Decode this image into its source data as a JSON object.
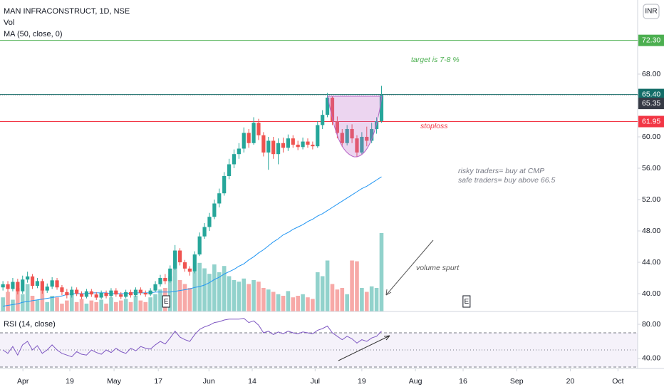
{
  "chart_data": {
    "type": "candlestick",
    "title": "MAN INFRACONSTRUCT, 1D, NSE",
    "currency": "INR",
    "up_color": "#26a69a",
    "down_color": "#ef5350",
    "open": [
      40.8,
      41.2,
      40.6,
      41.5,
      40.3,
      41.8,
      42.2,
      41.0,
      41.6,
      40.4,
      40.9,
      41.7,
      40.8,
      40.2,
      39.8,
      40.5,
      40.0,
      39.6,
      40.3,
      39.9,
      39.5,
      40.1,
      39.7,
      40.4,
      39.9,
      39.6,
      40.2,
      39.8,
      40.5,
      40.1,
      39.9,
      40.4,
      41.2,
      42.0,
      41.6,
      43.2,
      45.5,
      44.0,
      43.2,
      42.8,
      45.0,
      47.3,
      48.5,
      49.8,
      51.5,
      52.8,
      55.0,
      56.5,
      57.8,
      58.5,
      60.5,
      59.2,
      61.8,
      60.2,
      58.0,
      59.5,
      57.8,
      59.2,
      58.6,
      59.8,
      59.0,
      58.7,
      59.4,
      59.0,
      58.8,
      61.5,
      62.8,
      65.0,
      62.0,
      60.5,
      59.2,
      61.0,
      59.8,
      58.0,
      60.0,
      59.5,
      61.0,
      62.0
    ],
    "high": [
      41.6,
      41.6,
      42.0,
      41.9,
      42.3,
      42.8,
      42.5,
      42.0,
      41.9,
      41.3,
      42.1,
      42.0,
      41.1,
      40.6,
      40.9,
      40.8,
      40.3,
      40.6,
      40.6,
      40.2,
      40.4,
      40.4,
      40.7,
      40.7,
      40.2,
      40.5,
      40.5,
      40.8,
      40.8,
      40.4,
      40.7,
      41.6,
      42.4,
      42.5,
      43.6,
      46.2,
      45.8,
      44.3,
      43.5,
      45.4,
      47.8,
      49.0,
      50.3,
      52.0,
      53.4,
      55.5,
      57.2,
      58.4,
      59.2,
      61.2,
      61.0,
      62.5,
      62.3,
      60.6,
      60.0,
      60.0,
      59.8,
      59.9,
      60.3,
      60.2,
      59.5,
      59.9,
      59.8,
      59.4,
      62.0,
      63.4,
      65.6,
      65.2,
      62.6,
      61.0,
      61.5,
      61.6,
      60.2,
      60.6,
      61.3,
      61.8,
      62.5,
      66.5
    ],
    "low": [
      40.4,
      40.2,
      40.3,
      39.9,
      40.0,
      41.4,
      40.6,
      40.7,
      40.0,
      40.1,
      40.6,
      40.5,
      39.8,
      39.4,
      39.5,
      39.7,
      39.3,
      39.4,
      39.6,
      39.2,
      39.3,
      39.4,
      39.5,
      39.6,
      39.3,
      39.4,
      39.5,
      39.6,
      39.8,
      39.6,
      39.7,
      40.2,
      40.9,
      41.2,
      41.4,
      43.0,
      43.6,
      42.8,
      42.3,
      42.6,
      44.8,
      47.0,
      48.0,
      49.5,
      51.0,
      52.5,
      54.6,
      56.0,
      57.2,
      58.0,
      58.6,
      59.0,
      59.6,
      57.5,
      55.8,
      57.2,
      56.5,
      58.0,
      58.2,
      58.6,
      58.3,
      58.4,
      58.6,
      58.4,
      58.6,
      61.0,
      62.5,
      61.5,
      59.8,
      58.7,
      58.9,
      59.2,
      57.4,
      57.7,
      58.8,
      59.2,
      60.4,
      61.8
    ],
    "close": [
      41.2,
      40.6,
      41.5,
      40.3,
      41.8,
      42.2,
      41.0,
      41.6,
      40.4,
      40.9,
      41.7,
      40.8,
      40.2,
      39.8,
      40.5,
      40.0,
      39.6,
      40.3,
      39.9,
      39.5,
      40.1,
      39.7,
      40.4,
      39.9,
      39.6,
      40.2,
      39.8,
      40.5,
      40.1,
      39.9,
      40.4,
      41.2,
      42.0,
      41.6,
      43.2,
      45.5,
      44.0,
      43.2,
      42.8,
      45.0,
      47.3,
      48.5,
      49.8,
      51.5,
      52.8,
      55.0,
      56.5,
      57.8,
      58.5,
      60.5,
      59.2,
      61.8,
      60.2,
      58.0,
      59.5,
      57.8,
      59.2,
      58.6,
      59.8,
      59.0,
      58.7,
      59.4,
      59.0,
      58.8,
      61.5,
      62.8,
      65.0,
      62.0,
      60.5,
      59.2,
      61.0,
      59.8,
      58.0,
      60.0,
      59.5,
      61.0,
      62.0,
      65.35
    ],
    "volume": {
      "name": "Vol",
      "vlim": [
        0,
        100
      ],
      "values": [
        18,
        25,
        15,
        30,
        22,
        35,
        20,
        15,
        28,
        12,
        20,
        18,
        10,
        14,
        22,
        12,
        16,
        10,
        14,
        12,
        15,
        10,
        18,
        12,
        14,
        16,
        12,
        20,
        14,
        12,
        18,
        22,
        28,
        30,
        45,
        77,
        40,
        35,
        30,
        50,
        62,
        55,
        48,
        60,
        50,
        58,
        45,
        40,
        38,
        42,
        35,
        40,
        38,
        30,
        28,
        25,
        22,
        20,
        26,
        18,
        20,
        22,
        18,
        16,
        50,
        45,
        65,
        35,
        28,
        30,
        22,
        65,
        64,
        30,
        25,
        32,
        30,
        100
      ]
    },
    "ma": {
      "name": "MA (50, close, 0)",
      "color": "#2196f3",
      "values": [
        38.4,
        38.5,
        38.6,
        38.7,
        38.9,
        39.0,
        39.1,
        39.2,
        39.3,
        39.4,
        39.5,
        39.6,
        39.7,
        39.9,
        40.0,
        40.0,
        40.0,
        40.0,
        40.1,
        40.1,
        40.1,
        40.1,
        40.0,
        40.0,
        40.0,
        40.0,
        40.1,
        40.1,
        40.1,
        40.1,
        40.1,
        40.2,
        40.2,
        40.2,
        40.2,
        40.3,
        40.4,
        40.5,
        40.6,
        40.8,
        40.9,
        41.1,
        41.4,
        41.8,
        42.1,
        42.5,
        42.8,
        43.1,
        43.5,
        43.8,
        44.3,
        44.7,
        45.2,
        45.6,
        46.1,
        46.6,
        47.0,
        47.5,
        47.8,
        48.2,
        48.5,
        48.8,
        49.2,
        49.5,
        49.9,
        50.2,
        50.6,
        51.0,
        51.4,
        51.8,
        52.2,
        52.6,
        53.0,
        53.4,
        53.7,
        54.1,
        54.5,
        54.9
      ]
    },
    "rsi": {
      "name": "RSI (14, close)",
      "color": "#7e57c2",
      "rsilim": [
        28.3,
        95
      ],
      "levels": [
        70,
        50,
        30
      ],
      "yticks": [
        {
          "value": 80,
          "label": "80.00"
        },
        {
          "value": 40,
          "label": "40.00"
        }
      ],
      "values": [
        50,
        46,
        54,
        44,
        56,
        60,
        50,
        55,
        46,
        50,
        56,
        50,
        46,
        44,
        42,
        48,
        45,
        44,
        50,
        47,
        45,
        50,
        47,
        52,
        48,
        46,
        52,
        49,
        54,
        52,
        51,
        56,
        60,
        57,
        64,
        72,
        65,
        62,
        60,
        68,
        74,
        77,
        79,
        82,
        83,
        85,
        86,
        86,
        86,
        87,
        82,
        84,
        79,
        70,
        72,
        68,
        71,
        69,
        72,
        70,
        69,
        71,
        70,
        69,
        73,
        75,
        78,
        70,
        66,
        62,
        66,
        63,
        58,
        62,
        60,
        64,
        66,
        72
      ]
    },
    "ylim": [
      37.73,
      77.45
    ],
    "yticks": [
      {
        "value": 40,
        "label": "40.00"
      },
      {
        "value": 44,
        "label": "44.00"
      },
      {
        "value": 48,
        "label": "48.00"
      },
      {
        "value": 52,
        "label": "52.00"
      },
      {
        "value": 56,
        "label": "56.00"
      },
      {
        "value": 60,
        "label": "60.00"
      },
      {
        "value": 68,
        "label": "68.00"
      }
    ],
    "xlim": [
      -0.6,
      129.1
    ],
    "xticks": [
      {
        "value": 4.06,
        "label": "Apr"
      },
      {
        "value": 13.6,
        "label": "19"
      },
      {
        "value": 22.6,
        "label": "May"
      },
      {
        "value": 31.6,
        "label": "17"
      },
      {
        "value": 41.9,
        "label": "Jun"
      },
      {
        "value": 50.7,
        "label": "14"
      },
      {
        "value": 63.5,
        "label": "Jul"
      },
      {
        "value": 73.0,
        "label": "19"
      },
      {
        "value": 83.9,
        "label": "Aug"
      },
      {
        "value": 93.6,
        "label": "16"
      },
      {
        "value": 104.5,
        "label": "Sep"
      },
      {
        "value": 115.4,
        "label": "20"
      },
      {
        "value": 125.1,
        "label": "Oct"
      }
    ],
    "levels": [
      {
        "value": 72.3,
        "label": "72.30",
        "color": "#4caf50"
      },
      {
        "value": 65.4,
        "label": "65.40",
        "color": "#136d68"
      },
      {
        "value": 61.95,
        "label": "61.95",
        "color": "#f23645"
      }
    ],
    "last_price": {
      "value": 65.35,
      "label": "65.35",
      "color": "#363a45"
    },
    "events": [
      {
        "x": 33.2,
        "label": "E"
      },
      {
        "x": 94.3,
        "label": "E"
      }
    ],
    "annotations": {
      "target": "target is 7-8 %",
      "stoploss": "stoploss",
      "risky": "risky traders= buy at CMP",
      "safe": "safe traders= buy above 66.5",
      "volume": "volume spurt"
    }
  }
}
